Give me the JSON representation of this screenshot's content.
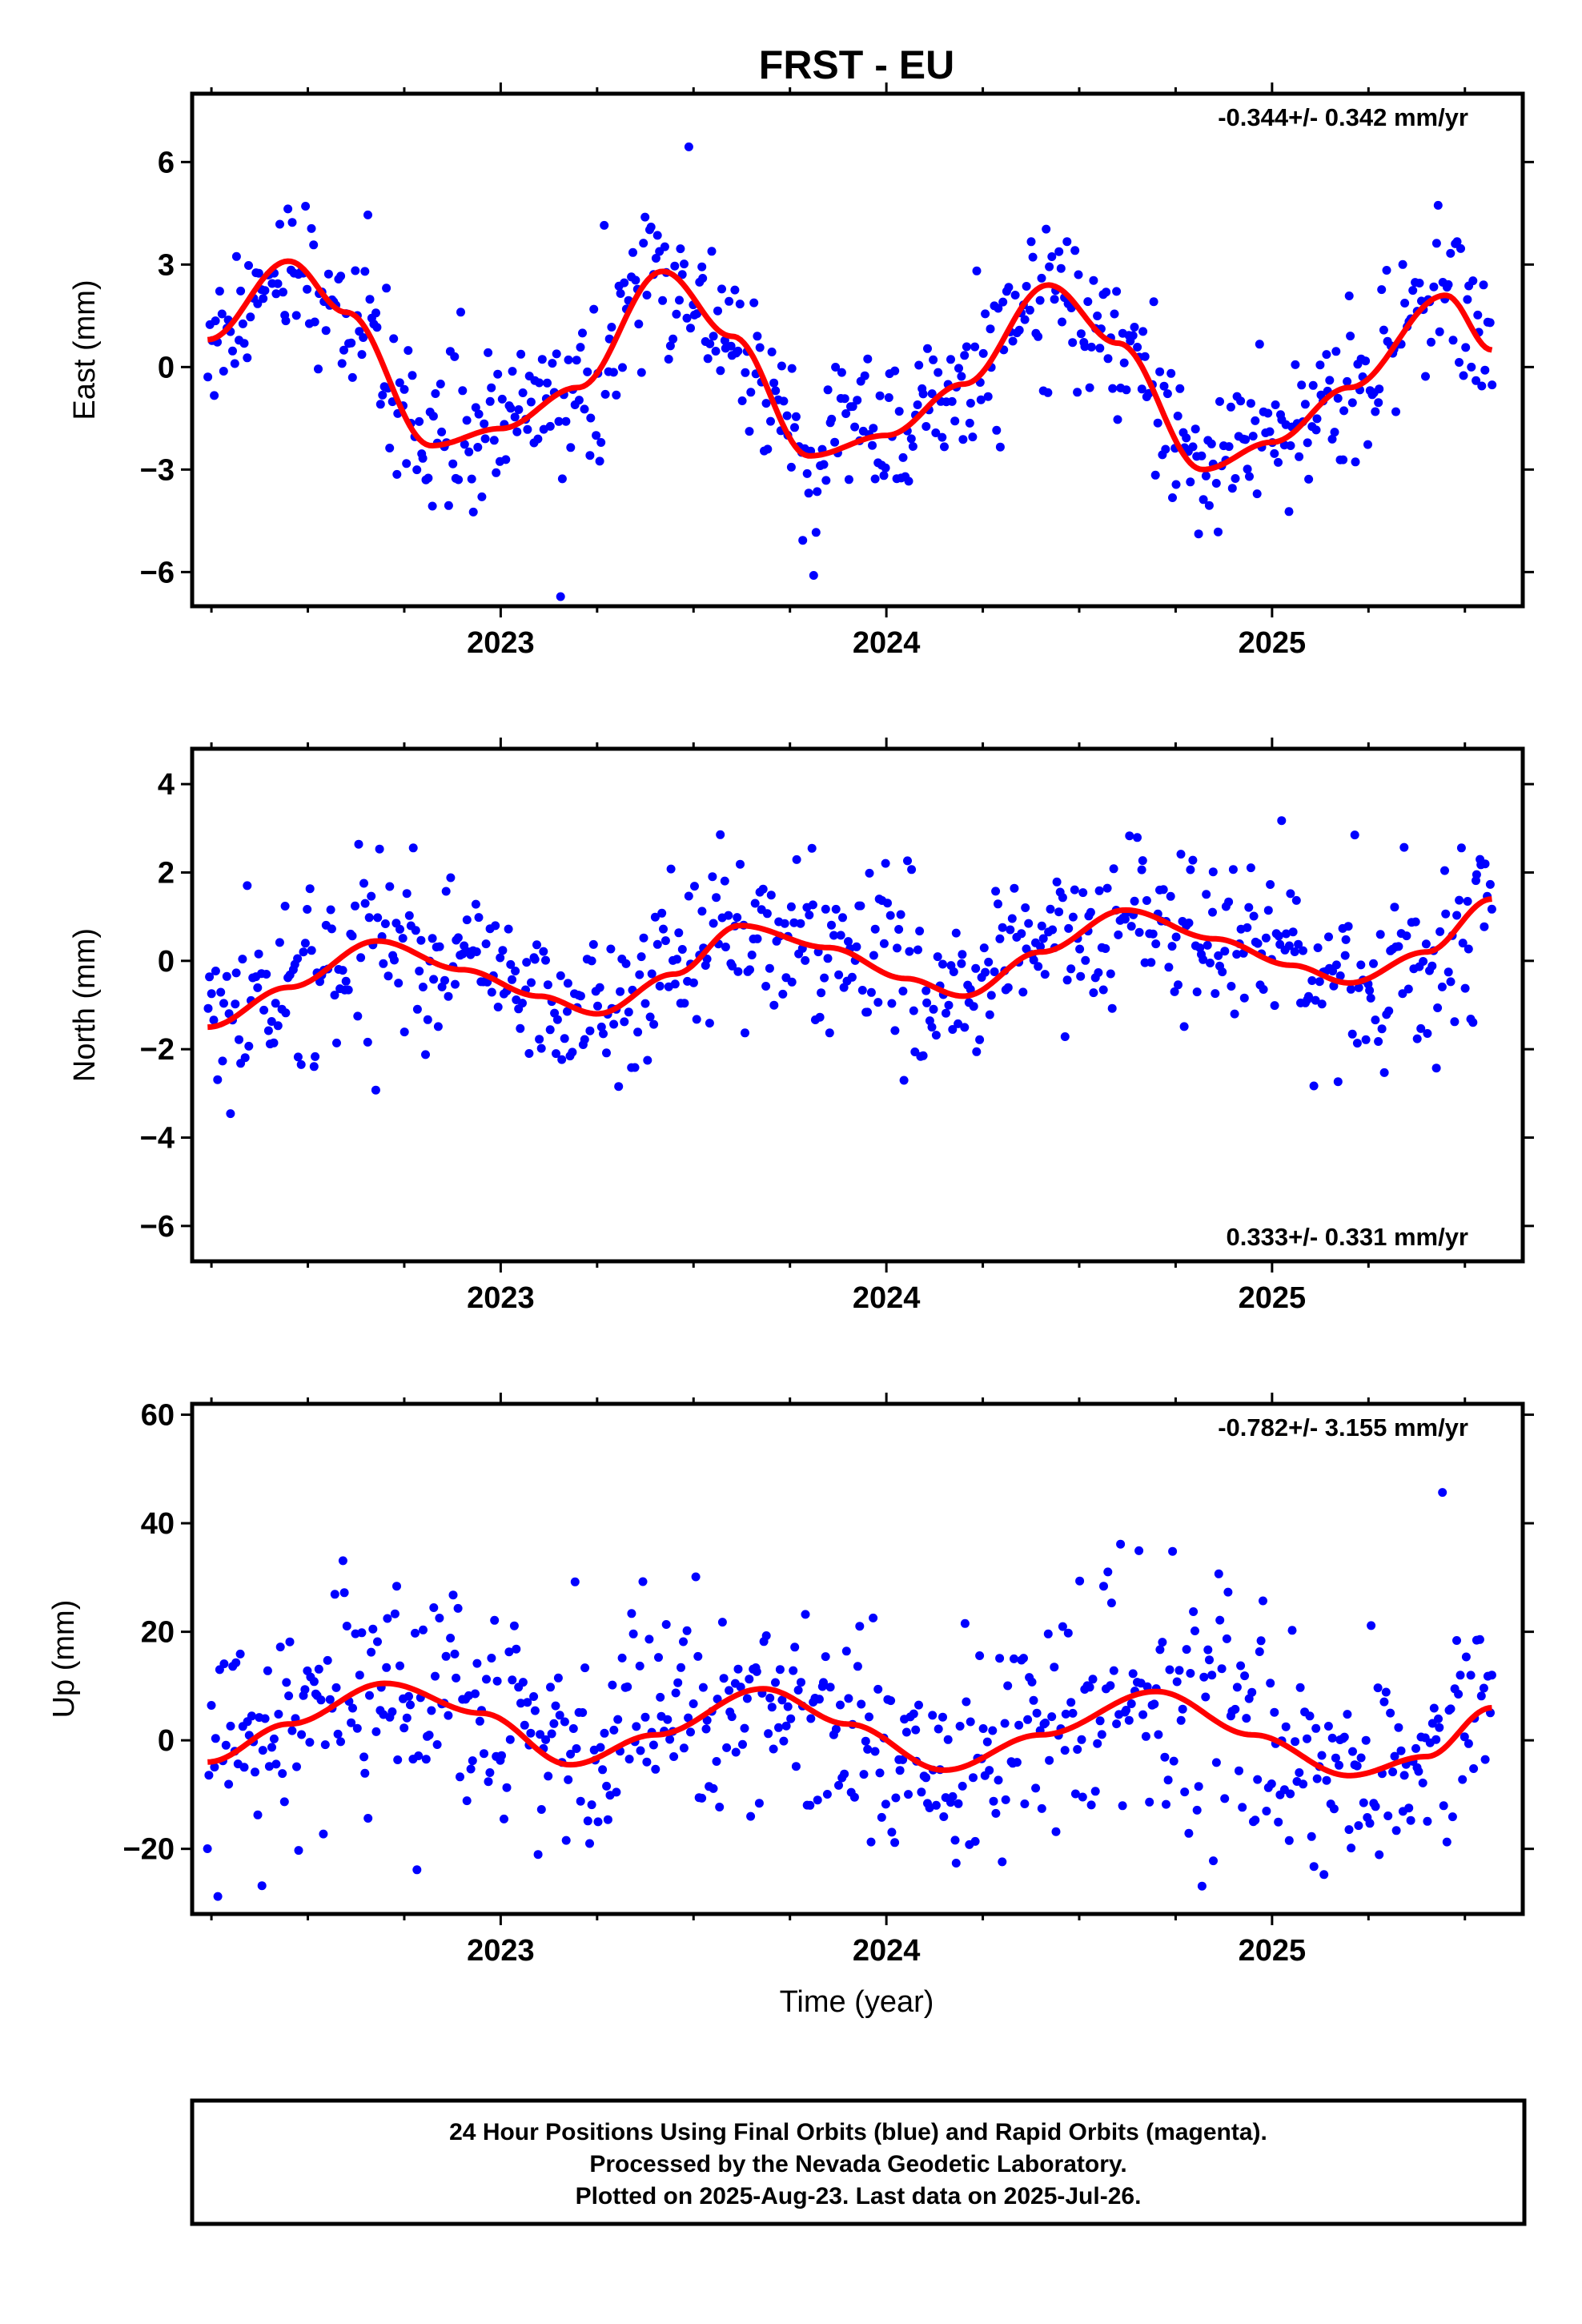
{
  "title": "FRST - EU",
  "xlabel": "Time (year)",
  "footer": {
    "line1": "24 Hour Positions Using Final Orbits (blue) and Rapid Orbits (magenta).",
    "line2": "Processed by the Nevada Geodetic Laboratory.",
    "line3": "Plotted on 2025-Aug-23. Last data on 2025-Jul-26."
  },
  "colors": {
    "final_orbits": "#0000ff",
    "fit": "#ff0000",
    "frame": "#000000"
  },
  "chart_data": [
    {
      "type": "scatter",
      "ylabel": "East (mm)",
      "rate_label": "-0.344+/- 0.342 mm/yr",
      "rate_position": "top-right",
      "xlim": [
        2022.2,
        2025.65
      ],
      "ylim": [
        -7,
        8
      ],
      "x_ticks": [
        2023,
        2024,
        2025
      ],
      "y_ticks": [
        6,
        3,
        0,
        -3,
        -6
      ],
      "y_tick_labels": [
        "6",
        "3",
        "0",
        "−3",
        "−6"
      ],
      "scatter_series": {
        "name": "Final Orbits",
        "x_start": 2022.24,
        "x_end": 2025.57,
        "spread": 1.05
      },
      "fit_curve": {
        "name": "model",
        "x": [
          2022.24,
          2022.45,
          2022.6,
          2022.82,
          2023.0,
          2023.2,
          2023.42,
          2023.6,
          2023.8,
          2024.0,
          2024.2,
          2024.42,
          2024.6,
          2024.82,
          2025.0,
          2025.2,
          2025.45,
          2025.57
        ],
        "y": [
          0.8,
          3.1,
          1.6,
          -2.3,
          -1.8,
          -0.6,
          2.8,
          0.9,
          -2.6,
          -2.0,
          -0.5,
          2.4,
          0.7,
          -3.0,
          -2.2,
          -0.6,
          2.1,
          0.5
        ]
      }
    },
    {
      "type": "scatter",
      "ylabel": "North (mm)",
      "rate_label": "0.333+/- 0.331 mm/yr",
      "rate_position": "bottom-right",
      "xlim": [
        2022.2,
        2025.65
      ],
      "ylim": [
        -6.8,
        4.8
      ],
      "x_ticks": [
        2023,
        2024,
        2025
      ],
      "y_ticks": [
        4,
        2,
        0,
        -2,
        -4,
        -6
      ],
      "y_tick_labels": [
        "4",
        "2",
        "0",
        "−2",
        "−4",
        "−6"
      ],
      "scatter_series": {
        "name": "Final Orbits",
        "x_start": 2022.24,
        "x_end": 2025.57,
        "spread": 1.0
      },
      "fit_curve": {
        "name": "model",
        "x": [
          2022.24,
          2022.45,
          2022.68,
          2022.9,
          2023.1,
          2023.25,
          2023.45,
          2023.62,
          2023.85,
          2024.05,
          2024.2,
          2024.4,
          2024.62,
          2024.85,
          2025.05,
          2025.2,
          2025.4,
          2025.57
        ],
        "y": [
          -1.5,
          -0.6,
          0.45,
          -0.2,
          -0.8,
          -1.2,
          -0.3,
          0.8,
          0.3,
          -0.4,
          -0.8,
          0.2,
          1.15,
          0.5,
          -0.1,
          -0.5,
          0.2,
          1.4
        ]
      }
    },
    {
      "type": "scatter",
      "ylabel": "Up (mm)",
      "rate_label": "-0.782+/- 3.155 mm/yr",
      "rate_position": "top-right",
      "xlim": [
        2022.2,
        2025.65
      ],
      "ylim": [
        -32,
        62
      ],
      "x_ticks": [
        2023,
        2024,
        2025
      ],
      "y_ticks": [
        60,
        40,
        20,
        0,
        -20
      ],
      "y_tick_labels": [
        "60",
        "40",
        "20",
        "0",
        "−20"
      ],
      "scatter_series": {
        "name": "Final Orbits",
        "x_start": 2022.24,
        "x_end": 2025.57,
        "spread": 10.5
      },
      "fit_curve": {
        "name": "model",
        "x": [
          2022.24,
          2022.45,
          2022.7,
          2022.95,
          2023.18,
          2023.4,
          2023.68,
          2023.9,
          2024.15,
          2024.4,
          2024.7,
          2024.95,
          2025.2,
          2025.4,
          2025.57
        ],
        "y": [
          -4,
          3,
          10.5,
          5,
          -4.5,
          1,
          9.5,
          3,
          -5.5,
          1,
          9,
          1,
          -6.5,
          -3,
          6
        ]
      }
    }
  ]
}
